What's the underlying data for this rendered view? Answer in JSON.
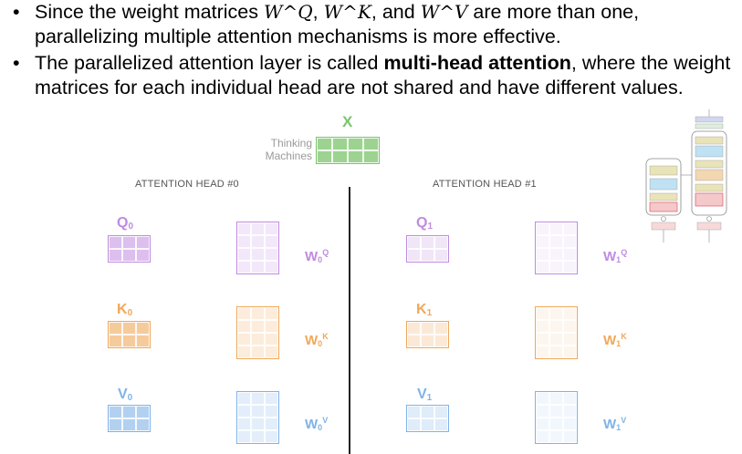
{
  "bullets": [
    {
      "pre": "Since the weight matrices ",
      "wq": "W^Q",
      "sep1": ", ",
      "wk": "W^K",
      "sep2": ", and ",
      "wv": "W^V",
      "post": " are more than one, parallelizing multiple attention mechanisms is more effective."
    },
    {
      "pre": "The parallelized attention layer is called ",
      "bold": "multi-head attention",
      "post": ", where the weight matrices for each individual head are not shared and have different values."
    }
  ],
  "figure": {
    "x_label": "X",
    "input_lines": [
      "Thinking",
      "Machines"
    ],
    "heads": [
      {
        "title": "ATTENTION HEAD #0",
        "q": {
          "base": "Q",
          "sub": "0"
        },
        "k": {
          "base": "K",
          "sub": "0"
        },
        "v": {
          "base": "V",
          "sub": "0"
        },
        "wq": {
          "base": "W",
          "sub": "0",
          "sup": "Q"
        },
        "wk": {
          "base": "W",
          "sub": "0",
          "sup": "K"
        },
        "wv": {
          "base": "W",
          "sub": "0",
          "sup": "V"
        }
      },
      {
        "title": "ATTENTION HEAD #1",
        "q": {
          "base": "Q",
          "sub": "1"
        },
        "k": {
          "base": "K",
          "sub": "1"
        },
        "v": {
          "base": "V",
          "sub": "1"
        },
        "wq": {
          "base": "W",
          "sub": "1",
          "sup": "Q"
        },
        "wk": {
          "base": "W",
          "sub": "1",
          "sup": "K"
        },
        "wv": {
          "base": "W",
          "sub": "1",
          "sup": "V"
        }
      }
    ]
  },
  "colors": {
    "x": "#7cc46b",
    "q": "#c08be0",
    "k": "#f0a85a",
    "v": "#7fb3e8",
    "divider": "#222222"
  }
}
